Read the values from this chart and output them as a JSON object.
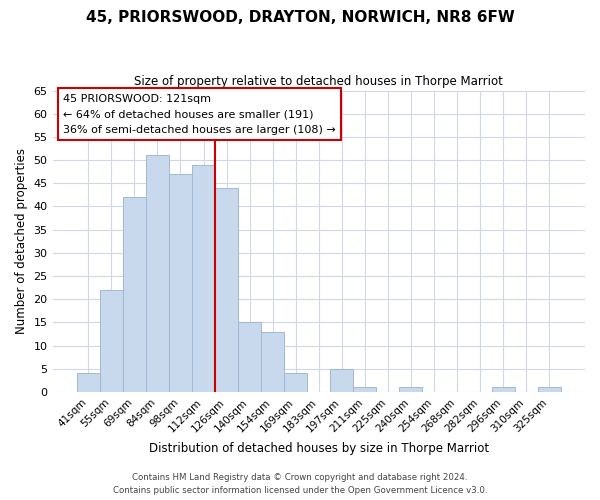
{
  "title": "45, PRIORSWOOD, DRAYTON, NORWICH, NR8 6FW",
  "subtitle": "Size of property relative to detached houses in Thorpe Marriot",
  "xlabel": "Distribution of detached houses by size in Thorpe Marriot",
  "ylabel": "Number of detached properties",
  "bin_labels": [
    "41sqm",
    "55sqm",
    "69sqm",
    "84sqm",
    "98sqm",
    "112sqm",
    "126sqm",
    "140sqm",
    "154sqm",
    "169sqm",
    "183sqm",
    "197sqm",
    "211sqm",
    "225sqm",
    "240sqm",
    "254sqm",
    "268sqm",
    "282sqm",
    "296sqm",
    "310sqm",
    "325sqm"
  ],
  "bar_heights": [
    4,
    22,
    42,
    51,
    47,
    49,
    44,
    15,
    13,
    4,
    0,
    5,
    1,
    0,
    1,
    0,
    0,
    0,
    1,
    0,
    1
  ],
  "bar_color": "#c8d9ee",
  "bar_edge_color": "#a0b8d8",
  "vline_index": 6,
  "marker_label": "45 PRIORSWOOD: 121sqm",
  "annotation_line1": "← 64% of detached houses are smaller (191)",
  "annotation_line2": "36% of semi-detached houses are larger (108) →",
  "vline_color": "#cc0000",
  "ylim": [
    0,
    65
  ],
  "yticks": [
    0,
    5,
    10,
    15,
    20,
    25,
    30,
    35,
    40,
    45,
    50,
    55,
    60,
    65
  ],
  "footer_line1": "Contains HM Land Registry data © Crown copyright and database right 2024.",
  "footer_line2": "Contains public sector information licensed under the Open Government Licence v3.0.",
  "bg_color": "#ffffff",
  "grid_color": "#d0d8e8"
}
